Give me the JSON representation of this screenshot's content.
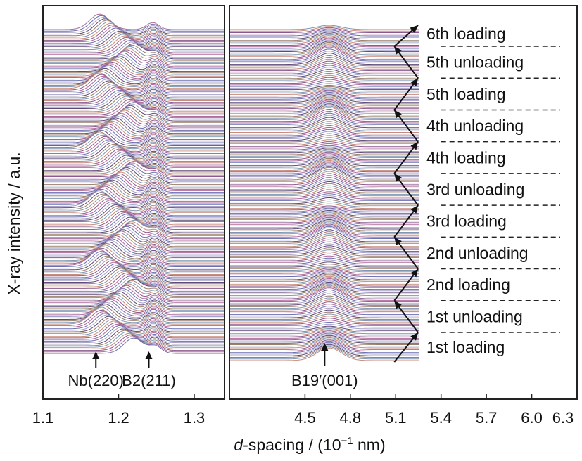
{
  "chart_data": {
    "type": "line",
    "panels": [
      {
        "x_ticks": [
          "1.1",
          "1.2",
          "1.3"
        ],
        "xlim": [
          1.1,
          1.34
        ],
        "peaks": [
          {
            "label": "Nb(220)",
            "x": 1.17
          },
          {
            "label": "B2(211)",
            "x": 1.24
          }
        ]
      },
      {
        "x_ticks": [
          "4.5",
          "4.8",
          "5.1",
          "5.4",
          "5.7",
          "6.0",
          "6.3"
        ],
        "xlim": [
          4.0,
          6.3
        ],
        "peaks": [
          {
            "label": "B19′(001)",
            "x": 4.63
          }
        ]
      }
    ],
    "ylabel": "X-ray intensity / a.u.",
    "xlabel_prefix": "d",
    "xlabel_rest": "-spacing / (10",
    "xlabel_sup": "−1",
    "xlabel_end": " nm)",
    "stages": [
      "1st loading",
      "1st unloading",
      "2nd loading",
      "2nd unloading",
      "3rd loading",
      "3rd unloading",
      "4th loading",
      "4th unloading",
      "5th loading",
      "5th unloading",
      "6th loading"
    ],
    "colors": {
      "frame": "#222222",
      "trace_palette": [
        "#6a6fb0",
        "#b06a9a",
        "#8a5a8e",
        "#c98a7a",
        "#7f96b5",
        "#9b7f6a",
        "#5e4a78",
        "#a7a0c8"
      ]
    }
  }
}
